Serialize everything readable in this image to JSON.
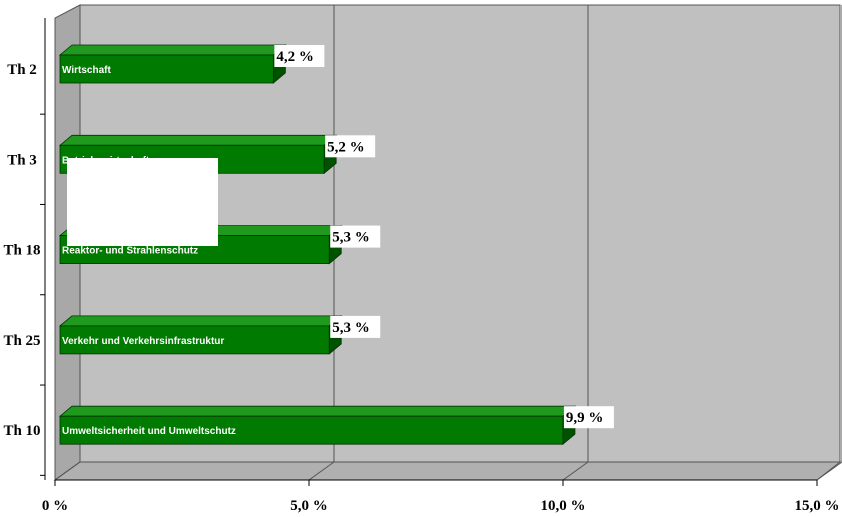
{
  "chart_data": {
    "type": "bar3d-horizontal",
    "categories": [
      "Th 2",
      "Th 3",
      "Th 18",
      "Th 25",
      "Th 10"
    ],
    "bar_labels": [
      "Wirtschaft",
      "Betriebswirtschaft",
      "Reaktor- und Strahlenschutz",
      "Verkehr und Verkehrsinfrastruktur",
      "Umweltsicherheit und Umweltschutz"
    ],
    "values": [
      4.2,
      5.2,
      5.3,
      5.3,
      9.9
    ],
    "value_labels": [
      "4,2 %",
      "5,2 %",
      "5,3 %",
      "5,3 %",
      "9,9 %"
    ],
    "color": "#007a00",
    "xlim": [
      0,
      15
    ],
    "xticks": [
      {
        "value": 0,
        "label": "0 %"
      },
      {
        "value": 5,
        "label": "5,0 %"
      },
      {
        "value": 10,
        "label": "10,0 %"
      },
      {
        "value": 15,
        "label": "15,0 %"
      }
    ],
    "grid": true
  }
}
